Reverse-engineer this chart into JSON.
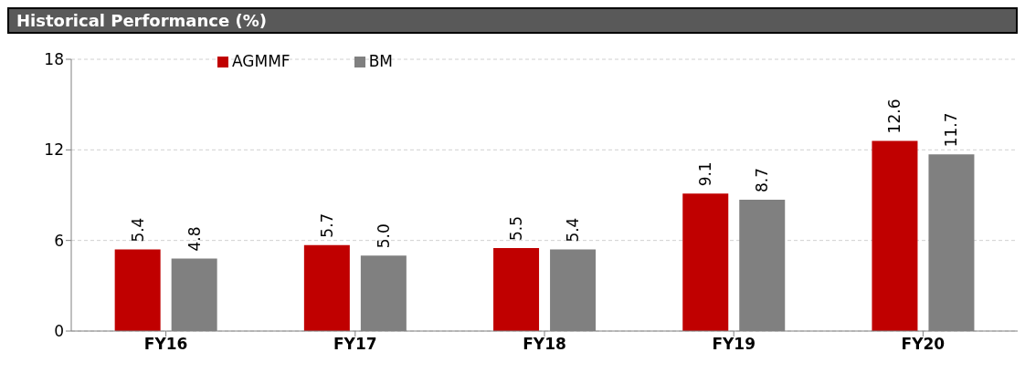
{
  "chart_data": {
    "type": "bar",
    "title": "Historical Performance (%)",
    "categories": [
      "FY16",
      "FY17",
      "FY18",
      "FY19",
      "FY20"
    ],
    "series": [
      {
        "name": "AGMMF",
        "color": "#c00000",
        "values": [
          5.4,
          5.7,
          5.5,
          9.1,
          12.6
        ],
        "value_labels": [
          "5.4",
          "5.7",
          "5.5",
          "9.1",
          "12.6"
        ]
      },
      {
        "name": "BM",
        "color": "#808080",
        "values": [
          4.8,
          5.0,
          5.4,
          8.7,
          11.7
        ],
        "value_labels": [
          "4.8",
          "5.0",
          "5.4",
          "8.7",
          "11.7"
        ]
      }
    ],
    "ylim": [
      0,
      18
    ],
    "yticks": [
      0,
      6,
      12,
      18
    ],
    "grid": "y",
    "legend": "top left"
  }
}
